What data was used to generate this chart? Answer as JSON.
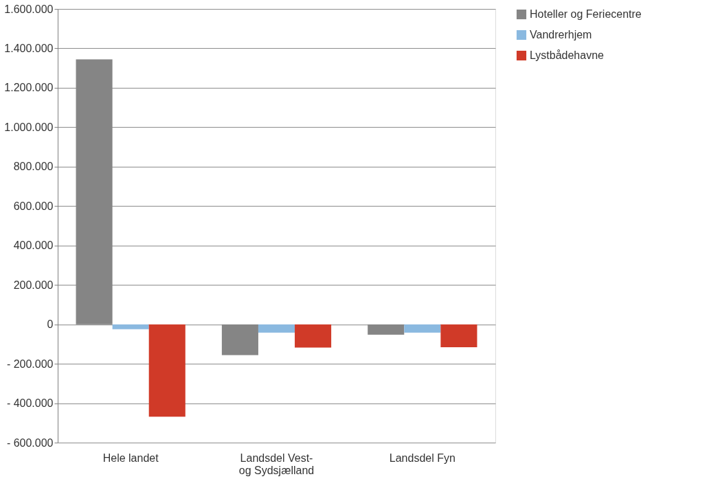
{
  "chart_data": {
    "type": "bar",
    "categories": [
      "Hele landet",
      "Landsdel Vest- og Sydsjælland",
      "Landsdel Fyn"
    ],
    "series": [
      {
        "name": "Hoteller og Feriecentre",
        "color": "#858585",
        "values": [
          1344000,
          -156000,
          -53000
        ]
      },
      {
        "name": "Vandrerhjem",
        "color": "#8ab9e0",
        "values": [
          -25000,
          -42000,
          -42000
        ]
      },
      {
        "name": "Lystbådehavne",
        "color": "#d03a28",
        "values": [
          -469000,
          -118000,
          -116000
        ]
      }
    ],
    "ylim": [
      -600000,
      1600000
    ],
    "yticks": [
      {
        "value": -600000,
        "label": "- 600.000"
      },
      {
        "value": -400000,
        "label": "- 400.000"
      },
      {
        "value": -200000,
        "label": "- 200.000"
      },
      0,
      {
        "value": 200000,
        "label": "200.000"
      },
      {
        "value": 400000,
        "label": "400.000"
      },
      {
        "value": 600000,
        "label": "600.000"
      },
      {
        "value": 800000,
        "label": "800.000"
      },
      {
        "value": 1000000,
        "label": "1.000.000"
      },
      {
        "value": 1200000,
        "label": "1.200.000"
      },
      {
        "value": 1400000,
        "label": "1.400.000"
      },
      {
        "value": 1600000,
        "label": "1.600.000"
      }
    ],
    "grid": "y",
    "legend": "right"
  }
}
